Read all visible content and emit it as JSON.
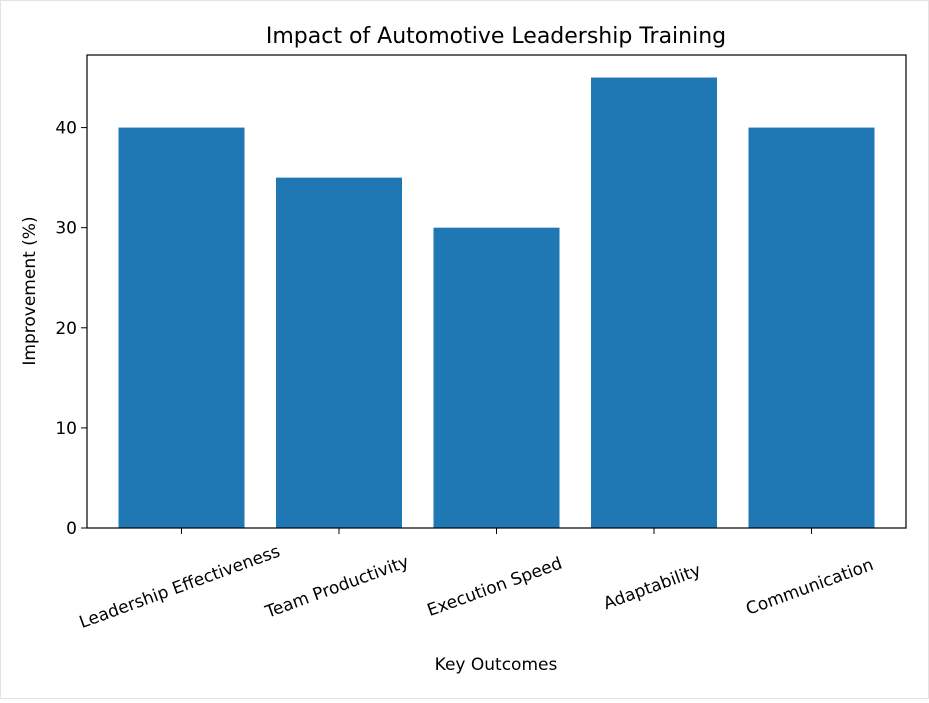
{
  "chart_data": {
    "type": "bar",
    "title": "Impact of Automotive Leadership Training",
    "xlabel": "Key Outcomes",
    "ylabel": "Improvement (%)",
    "categories": [
      "Leadership Effectiveness",
      "Team Productivity",
      "Execution Speed",
      "Adaptability",
      "Communication"
    ],
    "values": [
      40,
      35,
      30,
      45,
      40
    ],
    "ylim": [
      0,
      47.25
    ],
    "yticks": [
      0,
      10,
      20,
      30,
      40
    ],
    "xtick_rotation_deg": 20,
    "grid": false,
    "bar_color": "#1f77b4"
  }
}
